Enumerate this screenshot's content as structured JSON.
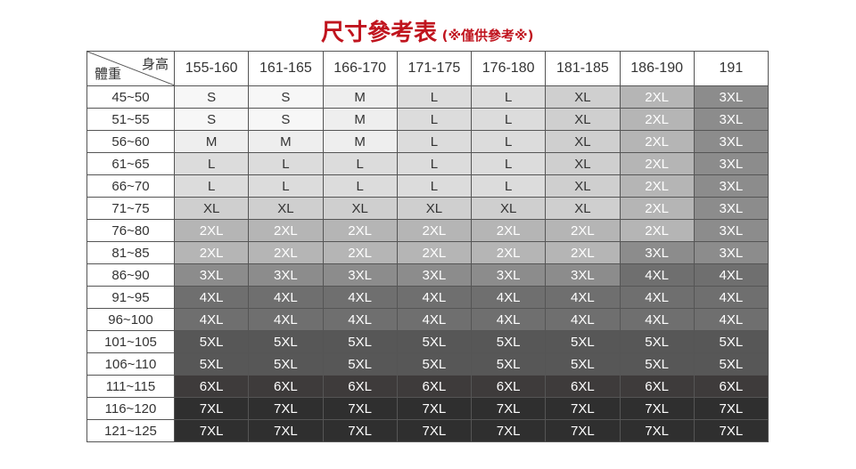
{
  "title": "尺寸參考表",
  "subtitle": "(※僅供參考※)",
  "corner": {
    "height_label": "身高",
    "weight_label": "體重"
  },
  "heights": [
    "155-160",
    "161-165",
    "166-170",
    "171-175",
    "176-180",
    "181-185",
    "186-190",
    "191"
  ],
  "rows": [
    {
      "weight": "45~50",
      "sizes": [
        "S",
        "S",
        "M",
        "L",
        "L",
        "XL",
        "2XL",
        "3XL"
      ]
    },
    {
      "weight": "51~55",
      "sizes": [
        "S",
        "S",
        "M",
        "L",
        "L",
        "XL",
        "2XL",
        "3XL"
      ]
    },
    {
      "weight": "56~60",
      "sizes": [
        "M",
        "M",
        "M",
        "L",
        "L",
        "XL",
        "2XL",
        "3XL"
      ]
    },
    {
      "weight": "61~65",
      "sizes": [
        "L",
        "L",
        "L",
        "L",
        "L",
        "XL",
        "2XL",
        "3XL"
      ]
    },
    {
      "weight": "66~70",
      "sizes": [
        "L",
        "L",
        "L",
        "L",
        "L",
        "XL",
        "2XL",
        "3XL"
      ]
    },
    {
      "weight": "71~75",
      "sizes": [
        "XL",
        "XL",
        "XL",
        "XL",
        "XL",
        "XL",
        "2XL",
        "3XL"
      ]
    },
    {
      "weight": "76~80",
      "sizes": [
        "2XL",
        "2XL",
        "2XL",
        "2XL",
        "2XL",
        "2XL",
        "2XL",
        "3XL"
      ]
    },
    {
      "weight": "81~85",
      "sizes": [
        "2XL",
        "2XL",
        "2XL",
        "2XL",
        "2XL",
        "2XL",
        "3XL",
        "3XL"
      ]
    },
    {
      "weight": "86~90",
      "sizes": [
        "3XL",
        "3XL",
        "3XL",
        "3XL",
        "3XL",
        "3XL",
        "4XL",
        "4XL"
      ]
    },
    {
      "weight": "91~95",
      "sizes": [
        "4XL",
        "4XL",
        "4XL",
        "4XL",
        "4XL",
        "4XL",
        "4XL",
        "4XL"
      ]
    },
    {
      "weight": "96~100",
      "sizes": [
        "4XL",
        "4XL",
        "4XL",
        "4XL",
        "4XL",
        "4XL",
        "4XL",
        "4XL"
      ]
    },
    {
      "weight": "101~105",
      "sizes": [
        "5XL",
        "5XL",
        "5XL",
        "5XL",
        "5XL",
        "5XL",
        "5XL",
        "5XL"
      ]
    },
    {
      "weight": "106~110",
      "sizes": [
        "5XL",
        "5XL",
        "5XL",
        "5XL",
        "5XL",
        "5XL",
        "5XL",
        "5XL"
      ]
    },
    {
      "weight": "111~115",
      "sizes": [
        "6XL",
        "6XL",
        "6XL",
        "6XL",
        "6XL",
        "6XL",
        "6XL",
        "6XL"
      ]
    },
    {
      "weight": "116~120",
      "sizes": [
        "7XL",
        "7XL",
        "7XL",
        "7XL",
        "7XL",
        "7XL",
        "7XL",
        "7XL"
      ]
    },
    {
      "weight": "121~125",
      "sizes": [
        "7XL",
        "7XL",
        "7XL",
        "7XL",
        "7XL",
        "7XL",
        "7XL",
        "7XL"
      ]
    }
  ],
  "size_colors": {
    "S": "#f7f7f7",
    "M": "#eeeeee",
    "L": "#dcdcdc",
    "XL": "#cfcfcf",
    "2XL": "#b5b5b5",
    "3XL": "#8c8c8c",
    "4XL": "#6f6f6f",
    "5XL": "#575757",
    "6XL": "#3e3b3b",
    "7XL": "#2f2f2f"
  },
  "title_color": "#c0141e"
}
